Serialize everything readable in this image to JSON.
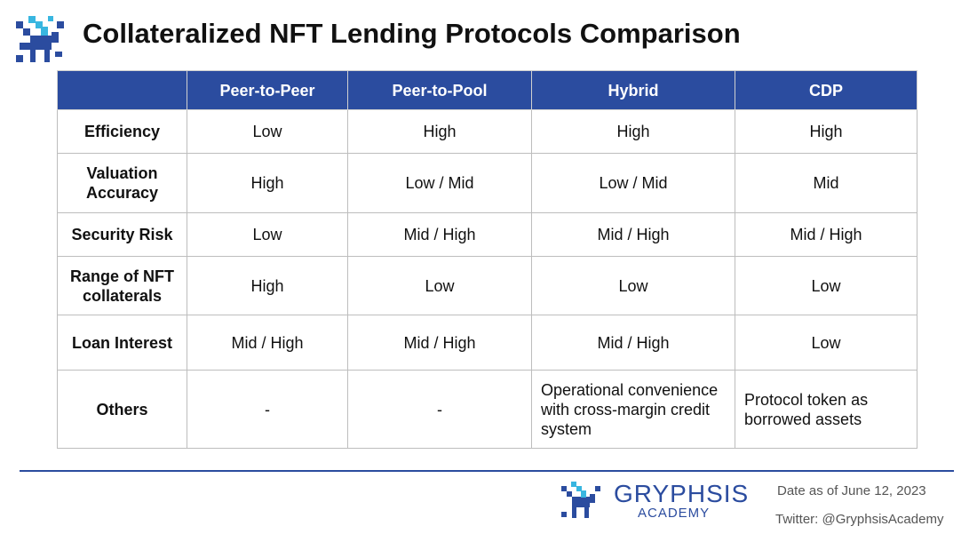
{
  "header": {
    "title": "Collateralized NFT Lending Protocols Comparison"
  },
  "table": {
    "columns": [
      "Peer-to-Peer",
      "Peer-to-Pool",
      "Hybrid",
      "CDP"
    ],
    "rows": [
      [
        "Efficiency",
        "Low",
        "High",
        "High",
        "High"
      ],
      [
        "Valuation Accuracy",
        "High",
        "Low / Mid",
        "Low / Mid",
        "Mid"
      ],
      [
        "Security Risk",
        "Low",
        "Mid / High",
        "Mid / High",
        "Mid / High"
      ],
      [
        "Range of NFT collaterals",
        "High",
        "Low",
        "Low",
        "Low"
      ],
      [
        "Loan Interest",
        "Mid / High",
        "Mid / High",
        "Mid / High",
        "Low"
      ],
      [
        "Others",
        "-",
        "-",
        "Operational convenience with cross-margin credit system",
        "Protocol token as borrowed assets"
      ]
    ]
  },
  "footer": {
    "brand": "GRYPHSIS",
    "brand_sub": "ACADEMY",
    "date": "Date as of June 12, 2023",
    "twitter": "Twitter: @GryphsisAcademy"
  }
}
